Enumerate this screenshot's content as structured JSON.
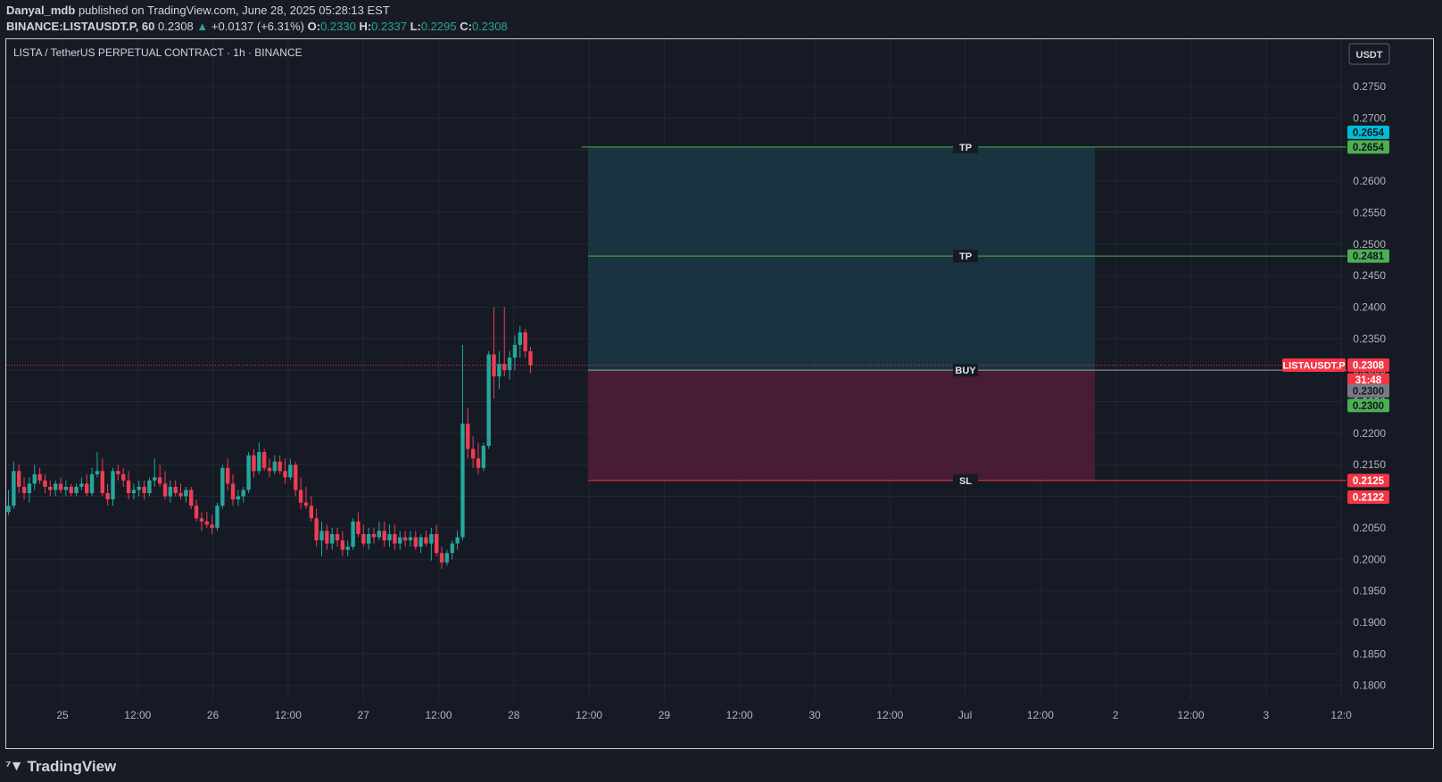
{
  "header": {
    "publisher": "Danyal_mdb",
    "published_text": "published on TradingView.com, June 28, 2025 05:28:13 EST",
    "symbol_line": "BINANCE:LISTAUSDT.P, 60",
    "last": "0.2308",
    "change_arrow": "▲",
    "change": "+0.0137 (+6.31%)",
    "o_label": "O:",
    "o": "0.2330",
    "h_label": "H:",
    "h": "0.2337",
    "l_label": "L:",
    "l": "0.2295",
    "c_label": "C:",
    "c": "0.2308"
  },
  "chart_title": "LISTA / TetherUS PERPETUAL CONTRACT · 1h · BINANCE",
  "currency_button": "USDT",
  "footer": {
    "brand": "TradingView",
    "logo_icon": "tradingview-logo-icon"
  },
  "colors": {
    "up": "#26a69a",
    "down": "#ef3d54",
    "tp_zone": "#1a3a45",
    "sl_zone": "#4e1d35",
    "tp_line": "#4caf50",
    "sl_line": "#f23645"
  },
  "chart_data": {
    "type": "candlestick",
    "timeframe": "1h",
    "ylim": [
      0.1775,
      0.281
    ],
    "y_ticks": [
      "0.2750",
      "0.2700",
      "0.2650",
      "0.2600",
      "0.2550",
      "0.2500",
      "0.2450",
      "0.2400",
      "0.2350",
      "0.2300",
      "0.2250",
      "0.2200",
      "0.2150",
      "0.2100",
      "0.2050",
      "0.2000",
      "0.1950",
      "0.1900",
      "0.1850",
      "0.1800"
    ],
    "x_ticks": [
      "25",
      "12:00",
      "26",
      "12:00",
      "27",
      "12:00",
      "28",
      "12:00",
      "29",
      "12:00",
      "30",
      "12:00",
      "Jul",
      "12:00",
      "2",
      "12:00",
      "3",
      "12:0"
    ],
    "price_line": 0.2308,
    "candles_ohlc": [
      [
        0.2075,
        0.211,
        0.207,
        0.2085
      ],
      [
        0.2085,
        0.2155,
        0.208,
        0.214
      ],
      [
        0.214,
        0.215,
        0.2105,
        0.2115
      ],
      [
        0.2115,
        0.213,
        0.2095,
        0.2105
      ],
      [
        0.2105,
        0.213,
        0.209,
        0.212
      ],
      [
        0.212,
        0.215,
        0.211,
        0.2135
      ],
      [
        0.2135,
        0.2145,
        0.212,
        0.2125
      ],
      [
        0.2125,
        0.2135,
        0.2105,
        0.2115
      ],
      [
        0.2115,
        0.2125,
        0.21,
        0.211
      ],
      [
        0.211,
        0.2125,
        0.21,
        0.212
      ],
      [
        0.212,
        0.213,
        0.2105,
        0.211
      ],
      [
        0.211,
        0.2125,
        0.21,
        0.2115
      ],
      [
        0.2115,
        0.212,
        0.21,
        0.2105
      ],
      [
        0.2105,
        0.212,
        0.21,
        0.2115
      ],
      [
        0.2115,
        0.213,
        0.211,
        0.212
      ],
      [
        0.212,
        0.2135,
        0.21,
        0.2105
      ],
      [
        0.2105,
        0.2145,
        0.21,
        0.2135
      ],
      [
        0.2135,
        0.217,
        0.213,
        0.214
      ],
      [
        0.214,
        0.216,
        0.21,
        0.2105
      ],
      [
        0.2105,
        0.212,
        0.2085,
        0.2095
      ],
      [
        0.2095,
        0.2145,
        0.2085,
        0.214
      ],
      [
        0.214,
        0.215,
        0.2125,
        0.2135
      ],
      [
        0.2135,
        0.2145,
        0.2115,
        0.2125
      ],
      [
        0.2125,
        0.214,
        0.2095,
        0.2105
      ],
      [
        0.2105,
        0.212,
        0.2095,
        0.211
      ],
      [
        0.211,
        0.2125,
        0.21,
        0.2115
      ],
      [
        0.2115,
        0.2125,
        0.2095,
        0.2105
      ],
      [
        0.2105,
        0.213,
        0.21,
        0.2125
      ],
      [
        0.2125,
        0.216,
        0.2115,
        0.213
      ],
      [
        0.213,
        0.215,
        0.2115,
        0.212
      ],
      [
        0.212,
        0.214,
        0.2095,
        0.21
      ],
      [
        0.21,
        0.2125,
        0.209,
        0.2115
      ],
      [
        0.2115,
        0.2125,
        0.21,
        0.2105
      ],
      [
        0.2105,
        0.212,
        0.2095,
        0.21
      ],
      [
        0.21,
        0.2115,
        0.209,
        0.211
      ],
      [
        0.211,
        0.2115,
        0.208,
        0.2085
      ],
      [
        0.2085,
        0.2095,
        0.206,
        0.2065
      ],
      [
        0.2065,
        0.2075,
        0.2045,
        0.206
      ],
      [
        0.206,
        0.2075,
        0.205,
        0.2055
      ],
      [
        0.2055,
        0.207,
        0.204,
        0.205
      ],
      [
        0.205,
        0.209,
        0.2045,
        0.2085
      ],
      [
        0.2085,
        0.215,
        0.208,
        0.2145
      ],
      [
        0.2145,
        0.216,
        0.211,
        0.212
      ],
      [
        0.212,
        0.2135,
        0.2085,
        0.2095
      ],
      [
        0.2095,
        0.211,
        0.2085,
        0.21
      ],
      [
        0.21,
        0.2115,
        0.209,
        0.211
      ],
      [
        0.211,
        0.217,
        0.2105,
        0.2165
      ],
      [
        0.2165,
        0.2175,
        0.213,
        0.214
      ],
      [
        0.214,
        0.2185,
        0.2135,
        0.217
      ],
      [
        0.217,
        0.2175,
        0.214,
        0.2145
      ],
      [
        0.2145,
        0.216,
        0.213,
        0.214
      ],
      [
        0.214,
        0.2165,
        0.2135,
        0.2155
      ],
      [
        0.2155,
        0.2165,
        0.2135,
        0.214
      ],
      [
        0.214,
        0.216,
        0.212,
        0.213
      ],
      [
        0.213,
        0.216,
        0.2125,
        0.215
      ],
      [
        0.215,
        0.2155,
        0.21,
        0.211
      ],
      [
        0.211,
        0.213,
        0.208,
        0.209
      ],
      [
        0.209,
        0.2115,
        0.208,
        0.2085
      ],
      [
        0.2085,
        0.21,
        0.206,
        0.2065
      ],
      [
        0.2065,
        0.208,
        0.202,
        0.203
      ],
      [
        0.203,
        0.206,
        0.2005,
        0.2045
      ],
      [
        0.2045,
        0.2055,
        0.2015,
        0.2025
      ],
      [
        0.2025,
        0.205,
        0.2015,
        0.204
      ],
      [
        0.204,
        0.205,
        0.202,
        0.203
      ],
      [
        0.203,
        0.2045,
        0.2005,
        0.2015
      ],
      [
        0.2015,
        0.203,
        0.2005,
        0.202
      ],
      [
        0.202,
        0.2065,
        0.2015,
        0.206
      ],
      [
        0.206,
        0.2075,
        0.2035,
        0.204
      ],
      [
        0.204,
        0.2055,
        0.202,
        0.2025
      ],
      [
        0.2025,
        0.205,
        0.2015,
        0.204
      ],
      [
        0.204,
        0.205,
        0.2025,
        0.2035
      ],
      [
        0.2035,
        0.206,
        0.203,
        0.2045
      ],
      [
        0.2045,
        0.206,
        0.202,
        0.203
      ],
      [
        0.203,
        0.2055,
        0.202,
        0.204
      ],
      [
        0.204,
        0.2055,
        0.2015,
        0.2025
      ],
      [
        0.2025,
        0.2045,
        0.2015,
        0.2035
      ],
      [
        0.2035,
        0.2045,
        0.202,
        0.203
      ],
      [
        0.203,
        0.2045,
        0.202,
        0.2035
      ],
      [
        0.2035,
        0.2045,
        0.2015,
        0.202
      ],
      [
        0.202,
        0.204,
        0.201,
        0.2035
      ],
      [
        0.2035,
        0.2045,
        0.202,
        0.2025
      ],
      [
        0.2025,
        0.205,
        0.1998,
        0.204
      ],
      [
        0.204,
        0.2055,
        0.2005,
        0.201
      ],
      [
        0.201,
        0.202,
        0.1985,
        0.1995
      ],
      [
        0.1995,
        0.2015,
        0.199,
        0.201
      ],
      [
        0.201,
        0.203,
        0.2,
        0.2025
      ],
      [
        0.2025,
        0.2045,
        0.2015,
        0.2035
      ],
      [
        0.2035,
        0.234,
        0.203,
        0.2215
      ],
      [
        0.2215,
        0.224,
        0.216,
        0.2175
      ],
      [
        0.2175,
        0.2195,
        0.2145,
        0.216
      ],
      [
        0.216,
        0.2185,
        0.2135,
        0.2145
      ],
      [
        0.2145,
        0.2185,
        0.214,
        0.218
      ],
      [
        0.218,
        0.233,
        0.2175,
        0.2325
      ],
      [
        0.2325,
        0.24,
        0.2255,
        0.229
      ],
      [
        0.229,
        0.233,
        0.227,
        0.231
      ],
      [
        0.231,
        0.24,
        0.229,
        0.23
      ],
      [
        0.23,
        0.233,
        0.2285,
        0.232
      ],
      [
        0.232,
        0.2355,
        0.23,
        0.234
      ],
      [
        0.234,
        0.237,
        0.232,
        0.236
      ],
      [
        0.236,
        0.2365,
        0.232,
        0.233
      ],
      [
        0.233,
        0.2337,
        0.2295,
        0.2308
      ]
    ],
    "position": {
      "entry_label": "BUY",
      "entry": 0.23,
      "tp_label": "TP",
      "tp1": 0.2481,
      "tp2": 0.2654,
      "sl_label": "SL",
      "sl": 0.2125
    },
    "price_tags": [
      {
        "text": "0.2654",
        "bg": "#00bcd4",
        "fg": "#131722",
        "price": 0.2654,
        "offset": -1
      },
      {
        "text": "0.2654",
        "bg": "#4caf50",
        "fg": "#131722",
        "price": 0.2654,
        "offset": 0
      },
      {
        "text": "0.2481",
        "bg": "#4caf50",
        "fg": "#131722",
        "price": 0.2481,
        "offset": 0
      },
      {
        "text": "0.2308",
        "bg": "#f23645",
        "fg": "#ffffff",
        "price": 0.2308,
        "offset": 0
      },
      {
        "text": "31:48",
        "bg": "#f23645",
        "fg": "#ffffff",
        "price": 0.2308,
        "offset": 1
      },
      {
        "text": "0.2300",
        "bg": "#787b86",
        "fg": "#131722",
        "price": 0.23,
        "offset": 1.4
      },
      {
        "text": "0.2300",
        "bg": "#4caf50",
        "fg": "#131722",
        "price": 0.23,
        "offset": 2.4
      },
      {
        "text": "0.2125",
        "bg": "#f23645",
        "fg": "#ffffff",
        "price": 0.2125,
        "offset": 0
      },
      {
        "text": "0.2122",
        "bg": "#f23645",
        "fg": "#ffffff",
        "price": 0.2122,
        "offset": 1
      }
    ],
    "symbol_tag": "LISTAUSDT.P"
  }
}
